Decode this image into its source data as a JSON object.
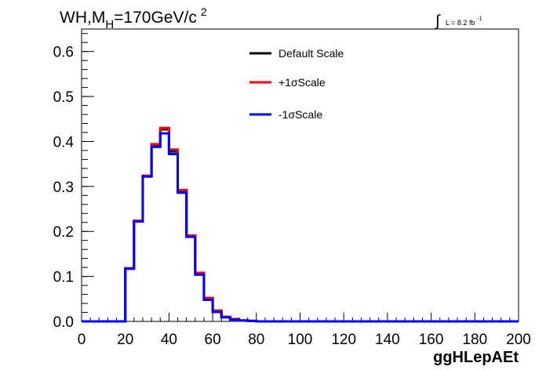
{
  "title": {
    "main": "WH,M",
    "sub": "H",
    "value": "=170GeV/c",
    "sup": "2"
  },
  "lumi": {
    "symbol": "∫",
    "text": "L = 8.2 fb",
    "sup": "-1"
  },
  "chart_data": {
    "type": "line",
    "xlabel": "ggHLepAEt",
    "ylabel": "",
    "xlim": [
      0,
      200
    ],
    "ylim": [
      0,
      0.65
    ],
    "x_ticks": [
      "0",
      "20",
      "40",
      "60",
      "80",
      "100",
      "120",
      "140",
      "160",
      "180",
      "200"
    ],
    "y_ticks": [
      "0.0",
      "0.1",
      "0.2",
      "0.3",
      "0.4",
      "0.5",
      "0.6"
    ],
    "bin_edges": [
      0,
      4,
      8,
      12,
      16,
      20,
      24,
      28,
      32,
      36,
      40,
      44,
      48,
      52,
      56,
      60,
      64,
      68,
      72,
      76,
      80,
      84,
      88,
      92,
      96,
      100,
      104,
      108,
      112,
      116,
      120,
      124,
      128,
      132,
      136,
      140,
      144,
      148,
      152,
      156,
      160,
      164,
      168,
      172,
      176,
      180,
      184,
      188,
      192,
      196,
      200
    ],
    "legend_position": "top-center",
    "series": [
      {
        "name": "Default Scale",
        "color": "#000000",
        "values": [
          0,
          0,
          0,
          0,
          0,
          0.118,
          0.224,
          0.323,
          0.392,
          0.427,
          0.378,
          0.29,
          0.19,
          0.107,
          0.052,
          0.024,
          0.01,
          0.005,
          0.002,
          0.001,
          0,
          0,
          0,
          0,
          0,
          0,
          0,
          0,
          0,
          0,
          0,
          0,
          0,
          0,
          0,
          0,
          0,
          0,
          0,
          0,
          0,
          0,
          0,
          0,
          0,
          0,
          0,
          0,
          0,
          0
        ]
      },
      {
        "name": "+1σScale",
        "color": "#ff0000",
        "values": [
          0,
          0,
          0,
          0,
          0,
          0.118,
          0.224,
          0.324,
          0.394,
          0.43,
          0.382,
          0.292,
          0.191,
          0.108,
          0.052,
          0.024,
          0.01,
          0.005,
          0.002,
          0.001,
          0,
          0,
          0,
          0,
          0,
          0,
          0,
          0,
          0,
          0,
          0,
          0,
          0,
          0,
          0,
          0,
          0,
          0,
          0,
          0,
          0,
          0,
          0,
          0,
          0,
          0,
          0,
          0,
          0,
          0
        ]
      },
      {
        "name": "-1σScale",
        "color": "#0000ff",
        "values": [
          0,
          0,
          0,
          0,
          0,
          0.117,
          0.222,
          0.322,
          0.388,
          0.418,
          0.372,
          0.286,
          0.188,
          0.104,
          0.048,
          0.021,
          0.009,
          0.004,
          0.002,
          0.001,
          0,
          0,
          0,
          0,
          0,
          0,
          0,
          0,
          0,
          0,
          0,
          0,
          0,
          0,
          0,
          0,
          0,
          0,
          0,
          0,
          0,
          0,
          0,
          0,
          0,
          0,
          0,
          0,
          0,
          0
        ]
      }
    ]
  }
}
